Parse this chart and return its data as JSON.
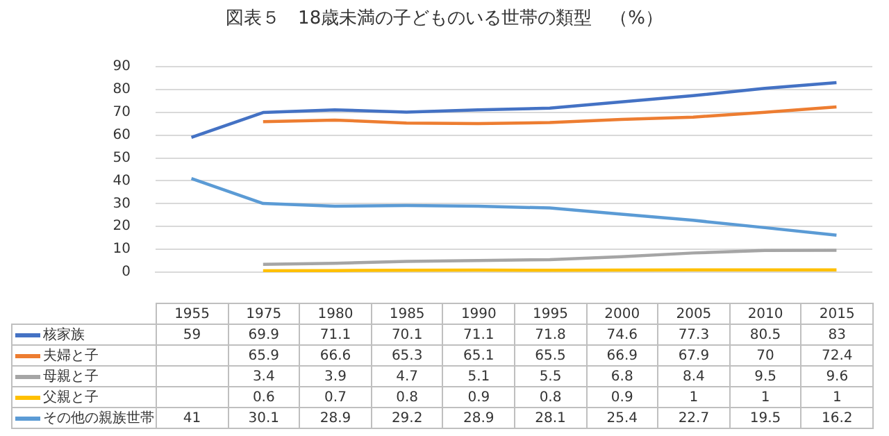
{
  "chart_data": {
    "type": "line",
    "title": "図表５　18歳未満の子どものいる世帯の類型　（%）",
    "categories": [
      "1955",
      "1975",
      "1980",
      "1985",
      "1990",
      "1995",
      "2000",
      "2005",
      "2010",
      "2015"
    ],
    "series": [
      {
        "name": "核家族",
        "color": "#4472c4",
        "values": [
          59,
          69.9,
          71.1,
          70.1,
          71.1,
          71.8,
          74.6,
          77.3,
          80.5,
          83
        ]
      },
      {
        "name": "夫婦と子",
        "color": "#ed7d31",
        "values": [
          null,
          65.9,
          66.6,
          65.3,
          65.1,
          65.5,
          66.9,
          67.9,
          70,
          72.4
        ]
      },
      {
        "name": "母親と子",
        "color": "#a5a5a5",
        "values": [
          null,
          3.4,
          3.9,
          4.7,
          5.1,
          5.5,
          6.8,
          8.4,
          9.5,
          9.6
        ]
      },
      {
        "name": "父親と子",
        "color": "#ffc000",
        "values": [
          null,
          0.6,
          0.7,
          0.8,
          0.9,
          0.8,
          0.9,
          1,
          1,
          1
        ]
      },
      {
        "name": "その他の親族世帯",
        "color": "#5b9bd5",
        "values": [
          41,
          30.1,
          28.9,
          29.2,
          28.9,
          28.1,
          25.4,
          22.7,
          19.5,
          16.2
        ]
      }
    ],
    "ylim": [
      0,
      90
    ],
    "yticks": [
      0,
      10,
      20,
      30,
      40,
      50,
      60,
      70,
      80,
      90
    ],
    "grid": "y",
    "legend": "bottom",
    "marker": "none",
    "line_style": "solid",
    "data_labels": true,
    "tick_labels": "y"
  }
}
